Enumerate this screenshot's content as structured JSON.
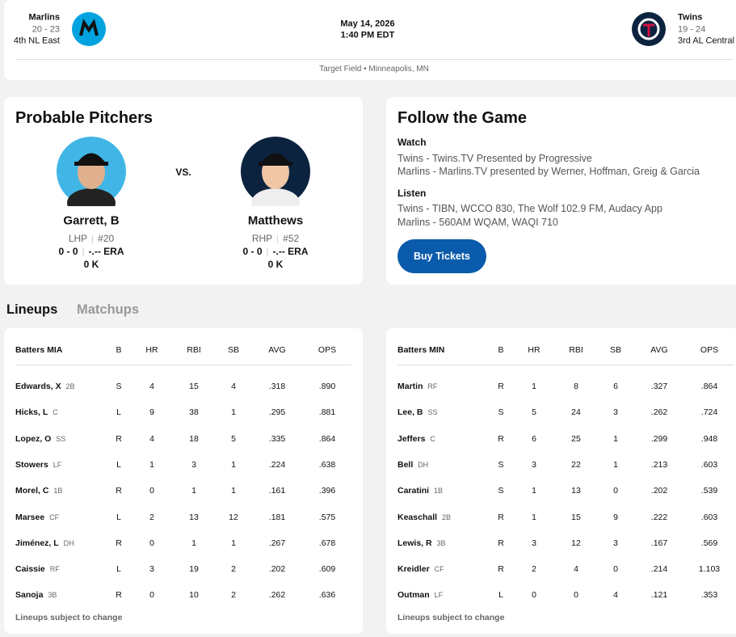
{
  "header": {
    "away": {
      "name": "Marlins",
      "record": "20 - 23",
      "standing": "4th NL East"
    },
    "date": "May 14, 2026",
    "time": "1:40 PM EDT",
    "home": {
      "name": "Twins",
      "record": "19 - 24",
      "standing": "3rd AL Central"
    },
    "venue": "Target Field • Minneapolis, MN"
  },
  "probable_pitchers": {
    "title": "Probable Pitchers",
    "vs": "VS.",
    "pitchers": [
      {
        "name": "Garrett, B",
        "hand": "LHP",
        "number": "#20",
        "record": "0 - 0",
        "era": "-.-- ERA",
        "strikeouts": "0 K"
      },
      {
        "name": "Matthews",
        "hand": "RHP",
        "number": "#52",
        "record": "0 - 0",
        "era": "-.-- ERA",
        "strikeouts": "0 K"
      }
    ]
  },
  "follow": {
    "title": "Follow the Game",
    "watch_label": "Watch",
    "watch": [
      "Twins - Twins.TV Presented by Progressive",
      "Marlins - Marlins.TV presented by Werner, Hoffman, Greig & Garcia"
    ],
    "listen_label": "Listen",
    "listen": [
      "Twins - TIBN, WCCO 830, The Wolf 102.9 FM, Audacy App",
      "Marlins - 560AM WQAM, WAQI 710"
    ],
    "button": "Buy Tickets"
  },
  "tabs": [
    "Lineups",
    "Matchups"
  ],
  "lineups": [
    {
      "columns": [
        "Batters MIA",
        "B",
        "HR",
        "RBI",
        "SB",
        "AVG",
        "OPS"
      ],
      "rows": [
        [
          "Edwards, X",
          "2B",
          "S",
          4,
          15,
          4,
          ".318",
          ".890"
        ],
        [
          "Hicks, L",
          "C",
          "L",
          9,
          38,
          1,
          ".295",
          ".881"
        ],
        [
          "Lopez, O",
          "SS",
          "R",
          4,
          18,
          5,
          ".335",
          ".864"
        ],
        [
          "Stowers",
          "LF",
          "L",
          1,
          3,
          1,
          ".224",
          ".638"
        ],
        [
          "Morel, C",
          "1B",
          "R",
          0,
          1,
          1,
          ".161",
          ".396"
        ],
        [
          "Marsee",
          "CF",
          "L",
          2,
          13,
          12,
          ".181",
          ".575"
        ],
        [
          "Jiménez, L",
          "DH",
          "R",
          0,
          1,
          1,
          ".267",
          ".678"
        ],
        [
          "Caissie",
          "RF",
          "L",
          3,
          19,
          2,
          ".202",
          ".609"
        ],
        [
          "Sanoja",
          "3B",
          "R",
          0,
          10,
          2,
          ".262",
          ".636"
        ]
      ],
      "footnote": "Lineups subject to change"
    },
    {
      "columns": [
        "Batters MIN",
        "B",
        "HR",
        "RBI",
        "SB",
        "AVG",
        "OPS"
      ],
      "rows": [
        [
          "Martin",
          "RF",
          "R",
          1,
          8,
          6,
          ".327",
          ".864"
        ],
        [
          "Lee, B",
          "SS",
          "S",
          5,
          24,
          3,
          ".262",
          ".724"
        ],
        [
          "Jeffers",
          "C",
          "R",
          6,
          25,
          1,
          ".299",
          ".948"
        ],
        [
          "Bell",
          "DH",
          "S",
          3,
          22,
          1,
          ".213",
          ".603"
        ],
        [
          "Caratini",
          "1B",
          "S",
          1,
          13,
          0,
          ".202",
          ".539"
        ],
        [
          "Keaschall",
          "2B",
          "R",
          1,
          15,
          9,
          ".222",
          ".603"
        ],
        [
          "Lewis, R",
          "3B",
          "R",
          3,
          12,
          3,
          ".167",
          ".569"
        ],
        [
          "Kreidler",
          "CF",
          "R",
          2,
          4,
          0,
          ".214",
          "1.103"
        ],
        [
          "Outman",
          "LF",
          "L",
          0,
          0,
          4,
          ".121",
          ".353"
        ]
      ],
      "footnote": "Lineups subject to change"
    }
  ]
}
